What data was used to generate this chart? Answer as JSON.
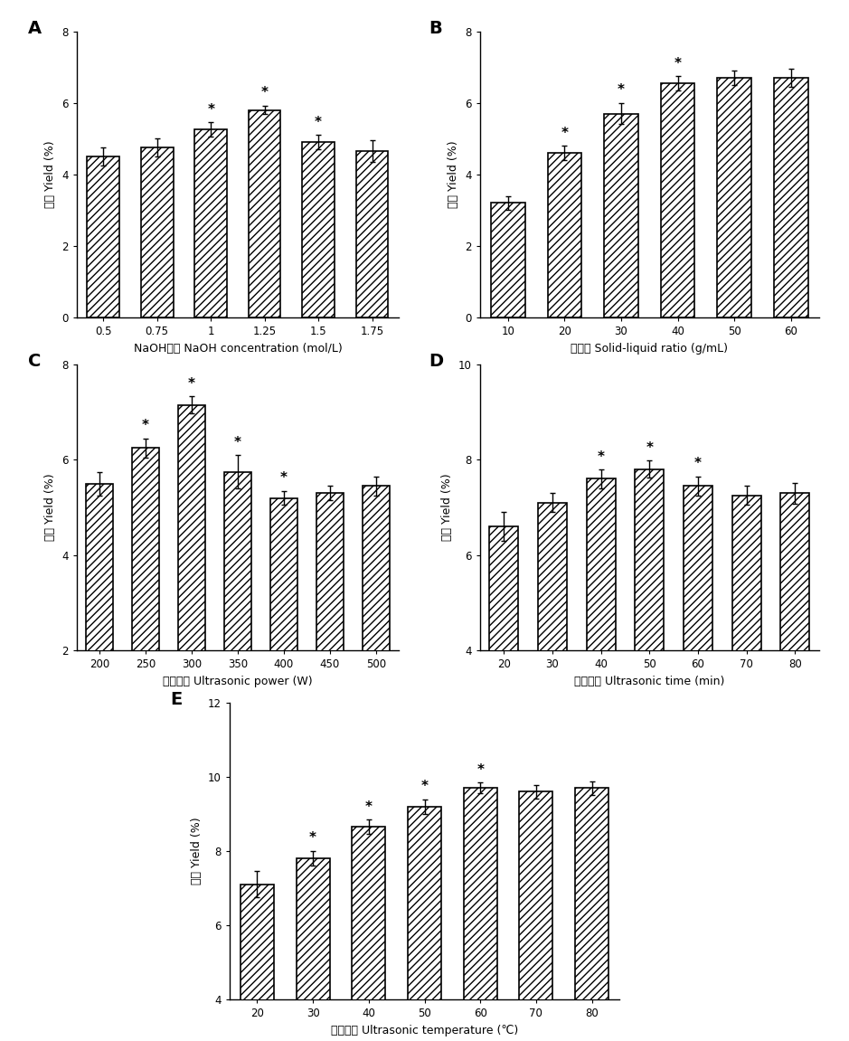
{
  "A": {
    "x_labels": [
      "0.5",
      "0.75",
      "1",
      "1.25",
      "1.5",
      "1.75"
    ],
    "values": [
      4.5,
      4.75,
      5.25,
      5.8,
      4.9,
      4.65
    ],
    "errors": [
      0.25,
      0.25,
      0.2,
      0.12,
      0.2,
      0.3
    ],
    "stars": [
      false,
      false,
      true,
      true,
      true,
      false
    ],
    "ylim": [
      0,
      8
    ],
    "yticks": [
      0,
      2,
      4,
      6,
      8
    ],
    "xlabel_cn": "NaOH浓度",
    "xlabel_en": "NaOH concentration (mol/L)",
    "ylabel_cn": "得率",
    "ylabel_en": "Yield (%)",
    "panel": "A"
  },
  "B": {
    "x_labels": [
      "10",
      "20",
      "30",
      "40",
      "50",
      "60"
    ],
    "values": [
      3.2,
      4.6,
      5.7,
      6.55,
      6.7,
      6.7
    ],
    "errors": [
      0.2,
      0.2,
      0.3,
      0.2,
      0.2,
      0.25
    ],
    "stars": [
      false,
      true,
      true,
      true,
      false,
      false
    ],
    "ylim": [
      0,
      8
    ],
    "yticks": [
      0,
      2,
      4,
      6,
      8
    ],
    "xlabel_cn": "料液比",
    "xlabel_en": "Solid-liquid ratio (g/mL)",
    "ylabel_cn": "得率",
    "ylabel_en": "Yield (%)",
    "panel": "B"
  },
  "C": {
    "x_labels": [
      "200",
      "250",
      "300",
      "350",
      "400",
      "450",
      "500"
    ],
    "values": [
      5.5,
      6.25,
      7.15,
      5.75,
      5.2,
      5.3,
      5.45
    ],
    "errors": [
      0.25,
      0.2,
      0.18,
      0.35,
      0.15,
      0.15,
      0.2
    ],
    "stars": [
      false,
      true,
      true,
      true,
      true,
      false,
      false
    ],
    "ylim": [
      2,
      8
    ],
    "yticks": [
      2,
      4,
      6,
      8
    ],
    "xlabel_cn": "超声功率",
    "xlabel_en": "Ultrasonic power (W)",
    "ylabel_cn": "得率",
    "ylabel_en": "Yield (%)",
    "panel": "C"
  },
  "D": {
    "x_labels": [
      "20",
      "30",
      "40",
      "50",
      "60",
      "70",
      "80"
    ],
    "values": [
      6.6,
      7.1,
      7.6,
      7.8,
      7.45,
      7.25,
      7.3
    ],
    "errors": [
      0.3,
      0.2,
      0.2,
      0.18,
      0.2,
      0.2,
      0.22
    ],
    "stars": [
      false,
      false,
      true,
      true,
      true,
      false,
      false
    ],
    "ylim": [
      4,
      10
    ],
    "yticks": [
      4,
      6,
      8,
      10
    ],
    "xlabel_cn": "超声时间",
    "xlabel_en": "Ultrasonic time (min)",
    "ylabel_cn": "得率",
    "ylabel_en": "Yield (%)",
    "panel": "D"
  },
  "E": {
    "x_labels": [
      "20",
      "30",
      "40",
      "50",
      "60",
      "70",
      "80"
    ],
    "values": [
      7.1,
      7.8,
      8.65,
      9.2,
      9.7,
      9.6,
      9.7
    ],
    "errors": [
      0.35,
      0.2,
      0.2,
      0.2,
      0.15,
      0.18,
      0.18
    ],
    "stars": [
      false,
      true,
      true,
      true,
      true,
      false,
      false
    ],
    "ylim": [
      4,
      12
    ],
    "yticks": [
      4,
      6,
      8,
      10,
      12
    ],
    "xlabel_cn": "超声温度",
    "xlabel_en": "Ultrasonic temperature (℃)",
    "ylabel_cn": "得率",
    "ylabel_en": "Yield (%)",
    "panel": "E"
  },
  "hatch": "////",
  "bar_color": "white",
  "bar_edgecolor": "black",
  "bar_linewidth": 1.2,
  "ecolor": "black",
  "capsize": 2,
  "star_fontsize": 11,
  "panel_fontsize": 14,
  "axis_label_fontsize": 9,
  "tick_fontsize": 8.5
}
